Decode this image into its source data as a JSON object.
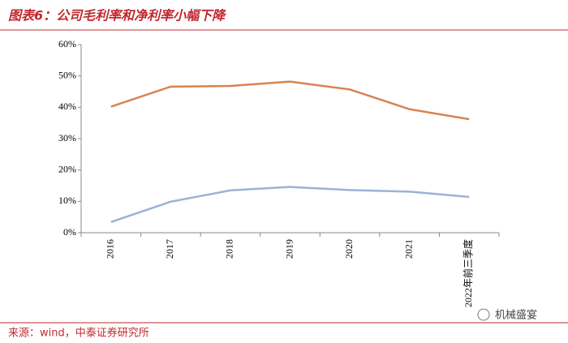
{
  "chart_data": {
    "type": "line",
    "title": "图表6：公司毛利率和净利率小幅下降",
    "source": "来源：wind，中泰证券研究所",
    "watermark": "机械盛宴",
    "categories": [
      "2016",
      "2017",
      "2018",
      "2019",
      "2020",
      "2021",
      "2022年前三季度"
    ],
    "series": [
      {
        "color": "#d8834f",
        "values": [
          40.2,
          46.6,
          46.8,
          48.2,
          45.7,
          39.4,
          36.2
        ]
      },
      {
        "color": "#9ab3d4",
        "values": [
          3.4,
          9.9,
          13.5,
          14.6,
          13.6,
          13.1,
          11.4
        ]
      }
    ],
    "ylim": [
      0,
      60
    ],
    "yticks": [
      {
        "value": 0,
        "label": "0%"
      },
      {
        "value": 10,
        "label": "10%"
      },
      {
        "value": 20,
        "label": "20%"
      },
      {
        "value": 30,
        "label": "30%"
      },
      {
        "value": 40,
        "label": "40%"
      },
      {
        "value": 50,
        "label": "50%"
      },
      {
        "value": 60,
        "label": "60%"
      }
    ]
  }
}
